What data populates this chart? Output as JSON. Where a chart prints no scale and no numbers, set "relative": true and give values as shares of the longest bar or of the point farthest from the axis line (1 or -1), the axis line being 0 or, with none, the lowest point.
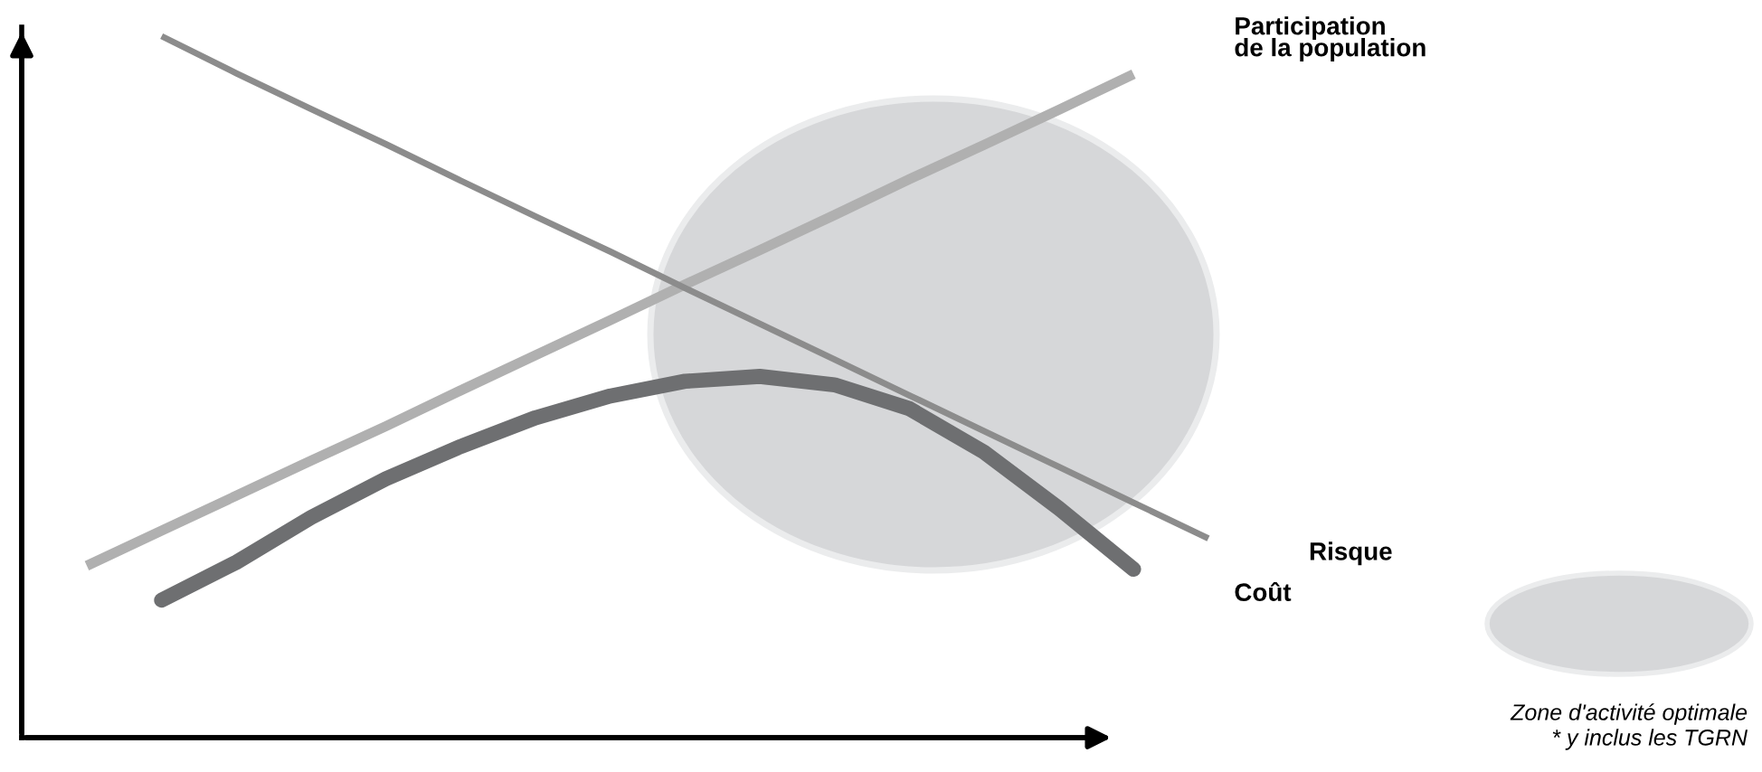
{
  "chart_data": {
    "type": "line",
    "relative": true,
    "categories": [
      null,
      null,
      null,
      null,
      null,
      null,
      null,
      null,
      null,
      null,
      null,
      null,
      null,
      null,
      null,
      null
    ],
    "series": [
      {
        "name": "Participation\nde la population",
        "color": "#b0b0b0",
        "values": [
          0.245,
          0.295,
          0.345,
          0.395,
          0.444,
          0.495,
          0.545,
          0.595,
          0.646,
          0.695,
          0.745,
          0.796,
          0.845,
          0.895,
          0.946,
          null
        ]
      },
      {
        "name": "Risque",
        "color": "#8c8c8c",
        "values": [
          null,
          1.0,
          0.947,
          0.896,
          0.846,
          0.794,
          0.743,
          0.693,
          0.641,
          0.59,
          0.539,
          0.488,
          0.437,
          0.386,
          0.335,
          0.284
        ]
      },
      {
        "name": "Coût",
        "color": "#6e6f71",
        "values": [
          null,
          0.196,
          0.25,
          0.314,
          0.369,
          0.415,
          0.456,
          0.487,
          0.508,
          0.515,
          0.503,
          0.469,
          0.407,
          0.327,
          0.24,
          null
        ]
      }
    ],
    "annotations": [
      "Zone d'activité optimale",
      "* y inclus les TGRN"
    ],
    "grid": false,
    "legend": false,
    "marker": "none",
    "line_style": "solid"
  }
}
